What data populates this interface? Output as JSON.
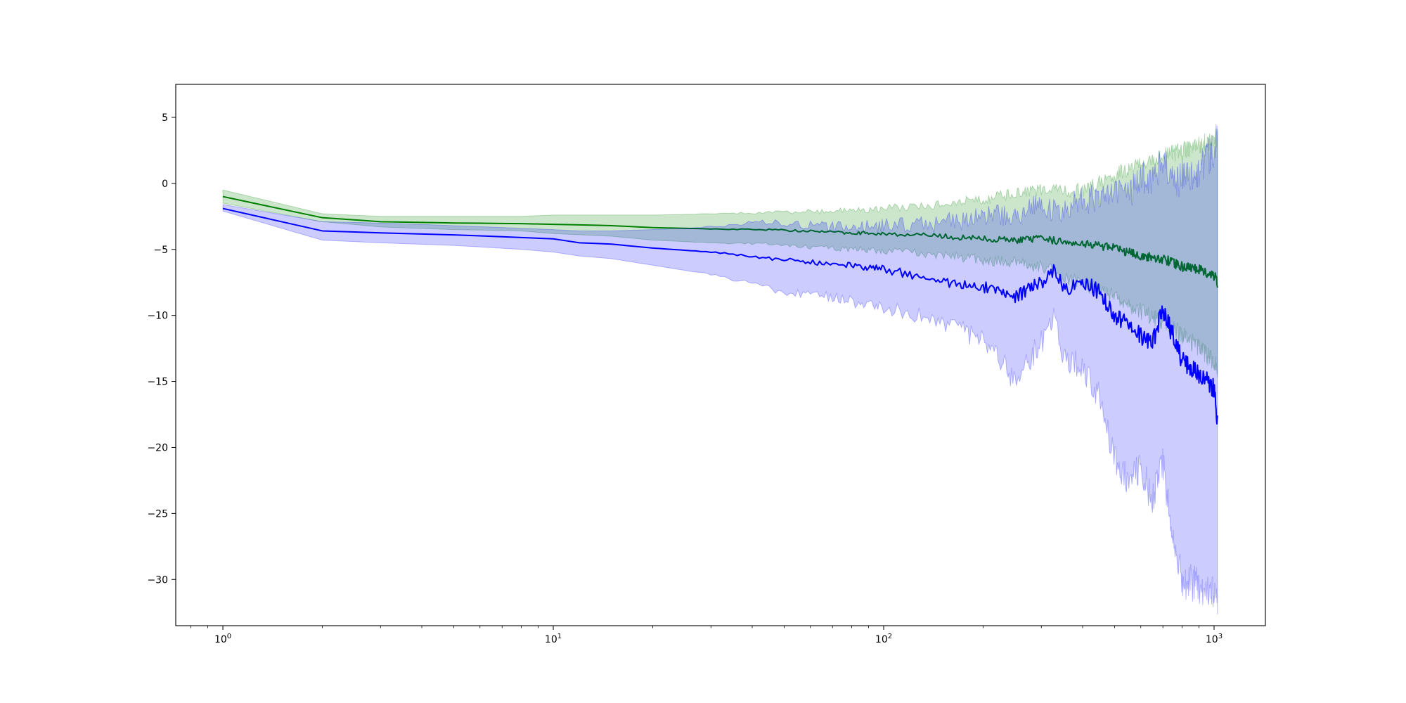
{
  "chart_data": {
    "type": "line",
    "title": "",
    "xlabel": "",
    "ylabel": "",
    "x_scale": "log",
    "xlim": [
      0.72,
      1430
    ],
    "ylim": [
      -33.5,
      7.5
    ],
    "grid": false,
    "legend": null,
    "x_ticks": [
      {
        "value": 1,
        "base": "10",
        "exp": "0"
      },
      {
        "value": 10,
        "base": "10",
        "exp": "1"
      },
      {
        "value": 100,
        "base": "10",
        "exp": "2"
      },
      {
        "value": 1000,
        "base": "10",
        "exp": "3"
      }
    ],
    "y_ticks": [
      {
        "value": 5,
        "label": "5"
      },
      {
        "value": 0,
        "label": "0"
      },
      {
        "value": -5,
        "label": "−5"
      },
      {
        "value": -10,
        "label": "−10"
      },
      {
        "value": -15,
        "label": "−15"
      },
      {
        "value": -20,
        "label": "−20"
      },
      {
        "value": -25,
        "label": "−25"
      },
      {
        "value": -30,
        "label": "−30"
      }
    ],
    "series": [
      {
        "color": "#008000",
        "band_color": "#008000",
        "band_opacity": 0.2,
        "x": [
          1,
          2,
          3,
          5,
          8,
          10,
          15,
          20,
          30,
          45,
          70,
          100,
          150,
          200,
          250,
          300,
          350,
          400,
          500,
          600,
          700,
          800,
          900,
          1000,
          1024
        ],
        "y": [
          -1.0,
          -2.6,
          -2.9,
          -3.0,
          -3.05,
          -3.1,
          -3.2,
          -3.35,
          -3.45,
          -3.5,
          -3.7,
          -3.8,
          -4.0,
          -4.2,
          -4.3,
          -4.2,
          -4.4,
          -4.5,
          -4.9,
          -5.5,
          -5.7,
          -6.3,
          -6.5,
          -7.0,
          -7.5
        ],
        "lower": [
          -1.5,
          -2.9,
          -3.3,
          -3.5,
          -3.6,
          -3.8,
          -4.0,
          -4.3,
          -4.5,
          -4.6,
          -4.9,
          -5.1,
          -5.4,
          -5.8,
          -6.0,
          -6.3,
          -7.0,
          -7.6,
          -8.5,
          -9.7,
          -10.5,
          -11.5,
          -12.5,
          -13.5,
          -14.0
        ],
        "upper": [
          -0.5,
          -2.3,
          -2.5,
          -2.5,
          -2.5,
          -2.4,
          -2.4,
          -2.4,
          -2.3,
          -2.2,
          -2.1,
          -1.9,
          -1.6,
          -1.2,
          -0.8,
          -0.5,
          -0.6,
          -0.5,
          0.6,
          1.5,
          2.0,
          2.5,
          2.9,
          3.3,
          3.5
        ],
        "noise": 0.5
      },
      {
        "color": "#0000ff",
        "band_color": "#0000ff",
        "band_opacity": 0.2,
        "x": [
          1,
          2,
          3,
          5,
          8,
          10,
          12,
          15,
          20,
          30,
          40,
          50,
          70,
          100,
          150,
          200,
          250,
          300,
          330,
          350,
          400,
          450,
          500,
          550,
          600,
          650,
          700,
          750,
          800,
          900,
          1000,
          1024
        ],
        "y": [
          -1.9,
          -3.6,
          -3.75,
          -3.9,
          -4.1,
          -4.2,
          -4.5,
          -4.6,
          -4.9,
          -5.2,
          -5.5,
          -5.8,
          -6.1,
          -6.5,
          -7.4,
          -7.8,
          -8.6,
          -7.5,
          -6.6,
          -8.0,
          -7.5,
          -8.2,
          -10.0,
          -10.8,
          -11.5,
          -12.2,
          -9.5,
          -11.5,
          -13.5,
          -14.5,
          -15.5,
          -18.0
        ],
        "lower": [
          -2.1,
          -4.3,
          -4.5,
          -4.7,
          -5.0,
          -5.2,
          -5.5,
          -5.7,
          -6.2,
          -6.9,
          -7.6,
          -8.3,
          -8.6,
          -9.4,
          -10.4,
          -12.0,
          -14.9,
          -12.0,
          -10.0,
          -13.0,
          -14.0,
          -16.0,
          -21.0,
          -22.5,
          -21.5,
          -24.0,
          -21.0,
          -27.0,
          -30.0,
          -30.5,
          -31.0,
          -32.0
        ],
        "upper": [
          -1.6,
          -2.9,
          -3.0,
          -3.2,
          -3.4,
          -3.5,
          -3.6,
          -3.6,
          -3.5,
          -3.3,
          -3.0,
          -3.0,
          -3.3,
          -3.2,
          -3.0,
          -2.6,
          -2.3,
          -1.6,
          -2.0,
          -2.5,
          -1.0,
          -1.5,
          -0.2,
          -1.0,
          0.5,
          0.3,
          1.8,
          0.0,
          0.5,
          1.0,
          2.5,
          3.5
        ],
        "noise": 1.0
      }
    ]
  }
}
